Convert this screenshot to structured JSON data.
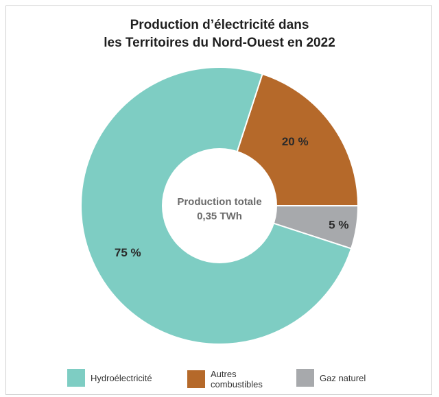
{
  "chart_data": {
    "type": "pie",
    "title_line1": "Production d’électricité dans",
    "title_line2": "les Territoires du Nord-Ouest en 2022",
    "center_label_line1": "Production totale",
    "center_label_line2": "0,35 TWh",
    "series": [
      {
        "name": "Hydroélectricité",
        "value": 75,
        "label": "75 %",
        "color": "#7ecdc3"
      },
      {
        "name": "Autres combustibles",
        "name_line1": "Autres",
        "name_line2": "combustibles",
        "value": 20,
        "label": "20 %",
        "color": "#b5692a"
      },
      {
        "name": "Gaz naturel",
        "value": 5,
        "label": "5 %",
        "color": "#a7a9ac"
      }
    ],
    "donut": true,
    "legend_position": "bottom"
  }
}
